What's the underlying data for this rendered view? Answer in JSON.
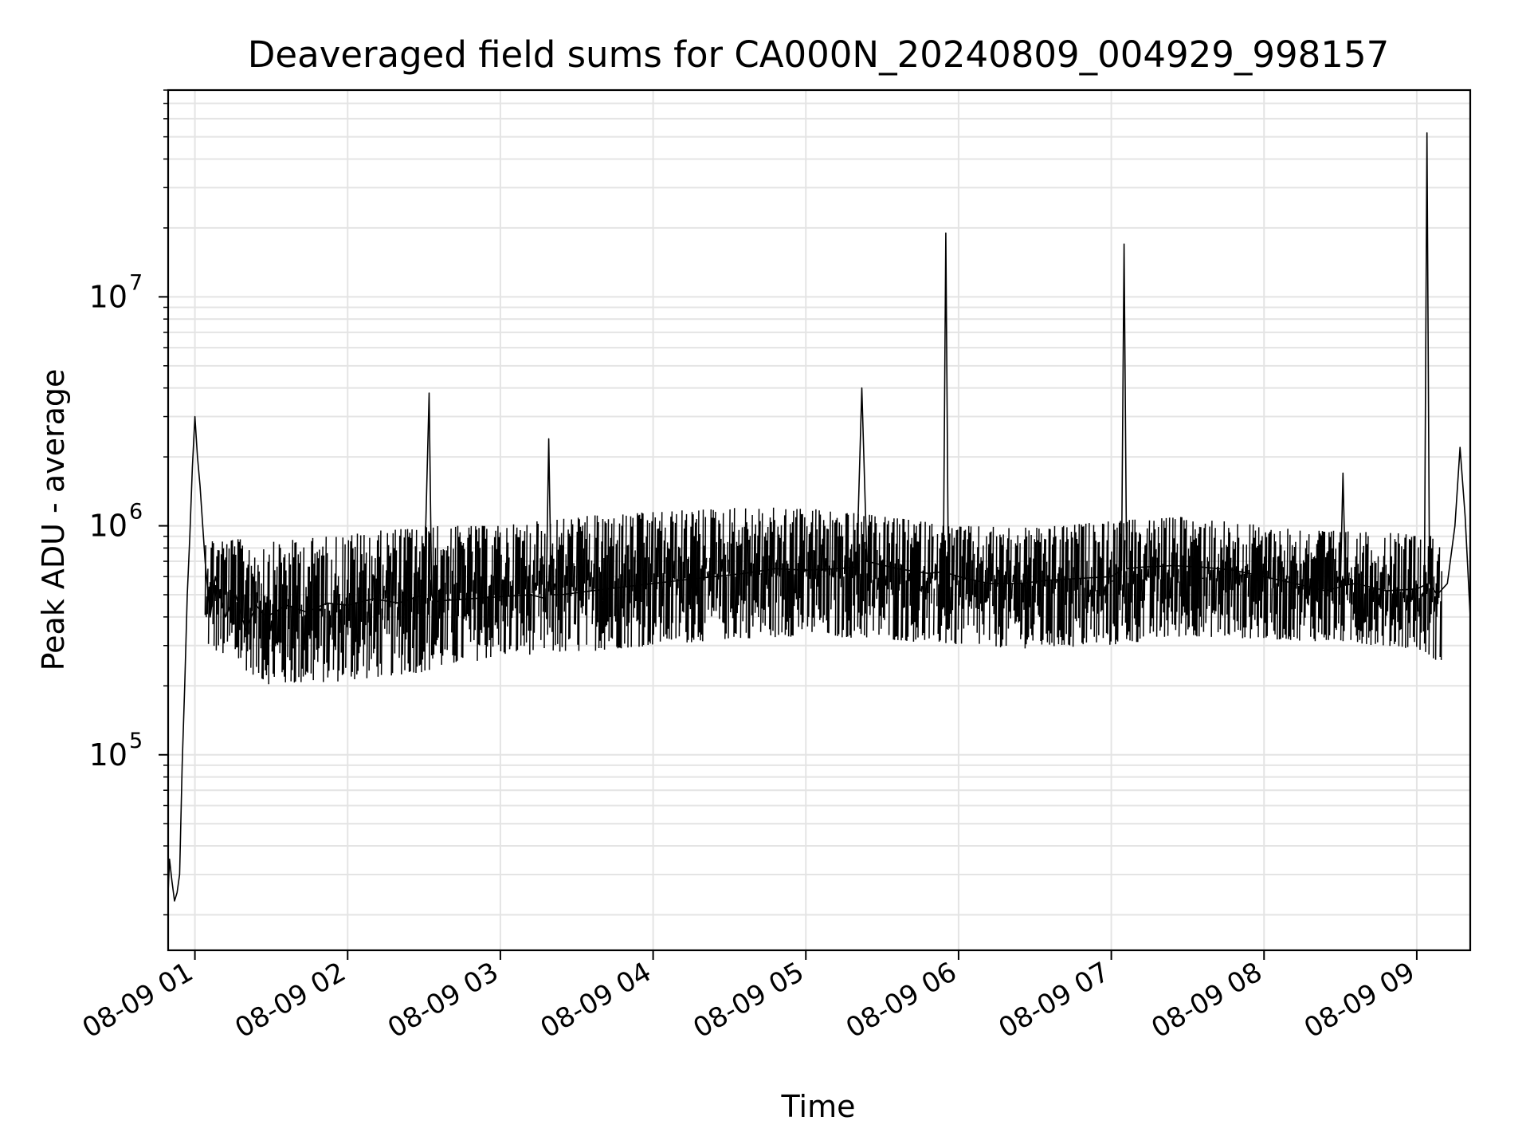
{
  "chart_data": {
    "type": "line",
    "title": "Deaveraged field sums for CA000N_20240809_004929_998157",
    "xlabel": "Time",
    "ylabel": "Peak ADU - average",
    "xscale": "time",
    "yscale": "log",
    "xlim": [
      "2024-08-09 00:49:29",
      "2024-08-09 09:21"
    ],
    "ylim": [
      14000,
      80000000
    ],
    "grid": "on (major and minor, light gray)",
    "legend": "none",
    "line_color": "#000000",
    "x_ticks": [
      {
        "t": "2024-08-09 01:00",
        "label": "08-09 01"
      },
      {
        "t": "2024-08-09 02:00",
        "label": "08-09 02"
      },
      {
        "t": "2024-08-09 03:00",
        "label": "08-09 03"
      },
      {
        "t": "2024-08-09 04:00",
        "label": "08-09 04"
      },
      {
        "t": "2024-08-09 05:00",
        "label": "08-09 05"
      },
      {
        "t": "2024-08-09 06:00",
        "label": "08-09 06"
      },
      {
        "t": "2024-08-09 07:00",
        "label": "08-09 07"
      },
      {
        "t": "2024-08-09 08:00",
        "label": "08-09 08"
      },
      {
        "t": "2024-08-09 09:00",
        "label": "08-09 09"
      }
    ],
    "y_ticks": [
      {
        "value": 100000,
        "base": "10",
        "exp": "5"
      },
      {
        "value": 1000000,
        "base": "10",
        "exp": "6"
      },
      {
        "value": 10000000,
        "base": "10",
        "exp": "7"
      }
    ],
    "series": [
      {
        "x": [
          "2024-08-09 00:49:29",
          "2024-08-09 00:50",
          "2024-08-09 00:51",
          "2024-08-09 00:52",
          "2024-08-09 00:53",
          "2024-08-09 00:54",
          "2024-08-09 00:55",
          "2024-08-09 00:56",
          "2024-08-09 00:57",
          "2024-08-09 00:58",
          "2024-08-09 00:59",
          "2024-08-09 01:00",
          "2024-08-09 01:01",
          "2024-08-09 01:02",
          "2024-08-09 01:04",
          "2024-08-09 01:06",
          "2024-08-09 01:08",
          "2024-08-09 01:12",
          "2024-08-09 01:16",
          "2024-08-09 01:20",
          "2024-08-09 01:24",
          "2024-08-09 01:28",
          "2024-08-09 01:36",
          "2024-08-09 01:44",
          "2024-08-09 01:52",
          "2024-08-09 02:00",
          "2024-08-09 02:10",
          "2024-08-09 02:20",
          "2024-08-09 02:30",
          "2024-08-09 02:32",
          "2024-08-09 02:33",
          "2024-08-09 02:34",
          "2024-08-09 02:36",
          "2024-08-09 02:48",
          "2024-08-09 03:00",
          "2024-08-09 03:12",
          "2024-08-09 03:18",
          "2024-08-09 03:19",
          "2024-08-09 03:20",
          "2024-08-09 03:24",
          "2024-08-09 03:36",
          "2024-08-09 03:48",
          "2024-08-09 04:00",
          "2024-08-09 04:12",
          "2024-08-09 04:24",
          "2024-08-09 04:36",
          "2024-08-09 04:48",
          "2024-08-09 05:00",
          "2024-08-09 05:12",
          "2024-08-09 05:20",
          "2024-08-09 05:22",
          "2024-08-09 05:24",
          "2024-08-09 05:36",
          "2024-08-09 05:48",
          "2024-08-09 05:54",
          "2024-08-09 05:55",
          "2024-08-09 05:56",
          "2024-08-09 06:00",
          "2024-08-09 06:12",
          "2024-08-09 06:24",
          "2024-08-09 06:36",
          "2024-08-09 06:48",
          "2024-08-09 07:00",
          "2024-08-09 07:04",
          "2024-08-09 07:05",
          "2024-08-09 07:06",
          "2024-08-09 07:12",
          "2024-08-09 07:24",
          "2024-08-09 07:36",
          "2024-08-09 07:48",
          "2024-08-09 08:00",
          "2024-08-09 08:12",
          "2024-08-09 08:24",
          "2024-08-09 08:30",
          "2024-08-09 08:31",
          "2024-08-09 08:32",
          "2024-08-09 08:36",
          "2024-08-09 08:48",
          "2024-08-09 09:00",
          "2024-08-09 09:03",
          "2024-08-09 09:04",
          "2024-08-09 09:05",
          "2024-08-09 09:08",
          "2024-08-09 09:12",
          "2024-08-09 09:15",
          "2024-08-09 09:17",
          "2024-08-09 09:19",
          "2024-08-09 09:21"
        ],
        "y": [
          25000,
          35000,
          28000,
          23000,
          25000,
          30000,
          90000,
          200000,
          500000,
          900000,
          1800000,
          3000000,
          2000000,
          1500000,
          700000,
          400000,
          600000,
          400000,
          500000,
          350000,
          450000,
          400000,
          450000,
          420000,
          460000,
          450000,
          480000,
          460000,
          500000,
          3800000,
          500000,
          460000,
          470000,
          480000,
          490000,
          500000,
          480000,
          2400000,
          500000,
          500000,
          520000,
          540000,
          560000,
          580000,
          600000,
          620000,
          650000,
          640000,
          650000,
          660000,
          4000000,
          700000,
          650000,
          620000,
          630000,
          19000000,
          620000,
          600000,
          560000,
          560000,
          580000,
          590000,
          600000,
          640000,
          17000000,
          650000,
          660000,
          670000,
          660000,
          640000,
          600000,
          560000,
          520000,
          540000,
          1700000,
          550000,
          560000,
          520000,
          530000,
          550000,
          52000000,
          560000,
          500000,
          560000,
          1000000,
          2200000,
          1100000,
          400000
        ]
      }
    ],
    "noise_band": [
      {
        "t": "2024-08-09 01:04",
        "low": 300000,
        "high": 900000
      },
      {
        "t": "2024-08-09 01:30",
        "low": 200000,
        "high": 850000
      },
      {
        "t": "2024-08-09 02:00",
        "low": 210000,
        "high": 920000
      },
      {
        "t": "2024-08-09 02:30",
        "low": 230000,
        "high": 1000000
      },
      {
        "t": "2024-08-09 03:00",
        "low": 270000,
        "high": 1000000
      },
      {
        "t": "2024-08-09 03:30",
        "low": 280000,
        "high": 1100000
      },
      {
        "t": "2024-08-09 04:00",
        "low": 300000,
        "high": 1150000
      },
      {
        "t": "2024-08-09 04:30",
        "low": 320000,
        "high": 1200000
      },
      {
        "t": "2024-08-09 05:00",
        "low": 330000,
        "high": 1200000
      },
      {
        "t": "2024-08-09 05:30",
        "low": 320000,
        "high": 1100000
      },
      {
        "t": "2024-08-09 06:00",
        "low": 300000,
        "high": 1000000
      },
      {
        "t": "2024-08-09 06:30",
        "low": 290000,
        "high": 980000
      },
      {
        "t": "2024-08-09 07:00",
        "low": 300000,
        "high": 1050000
      },
      {
        "t": "2024-08-09 07:30",
        "low": 330000,
        "high": 1100000
      },
      {
        "t": "2024-08-09 08:00",
        "low": 320000,
        "high": 1000000
      },
      {
        "t": "2024-08-09 08:30",
        "low": 310000,
        "high": 950000
      },
      {
        "t": "2024-08-09 09:00",
        "low": 290000,
        "high": 920000
      },
      {
        "t": "2024-08-09 09:10",
        "low": 250000,
        "high": 900000
      }
    ]
  }
}
